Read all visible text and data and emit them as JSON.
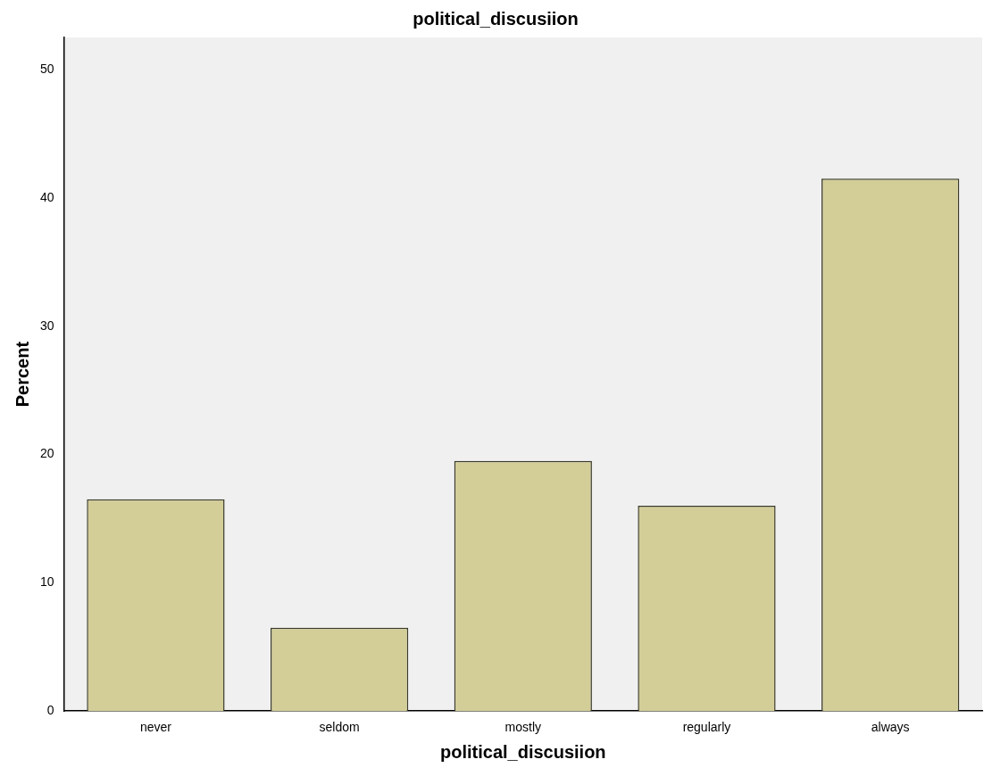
{
  "chart_data": {
    "type": "bar",
    "title": "political_discusiion",
    "xlabel": "political_discusiion",
    "ylabel": "Percent",
    "categories": [
      "never",
      "seldom",
      "mostly",
      "regularly",
      "always"
    ],
    "values": [
      16.5,
      6.5,
      19.5,
      16.0,
      41.5
    ],
    "color": "#d3cd98",
    "ylim": [
      0,
      52.5
    ],
    "yticks": [
      0,
      10,
      20,
      30,
      40,
      50
    ],
    "grid": false,
    "legend": false
  }
}
